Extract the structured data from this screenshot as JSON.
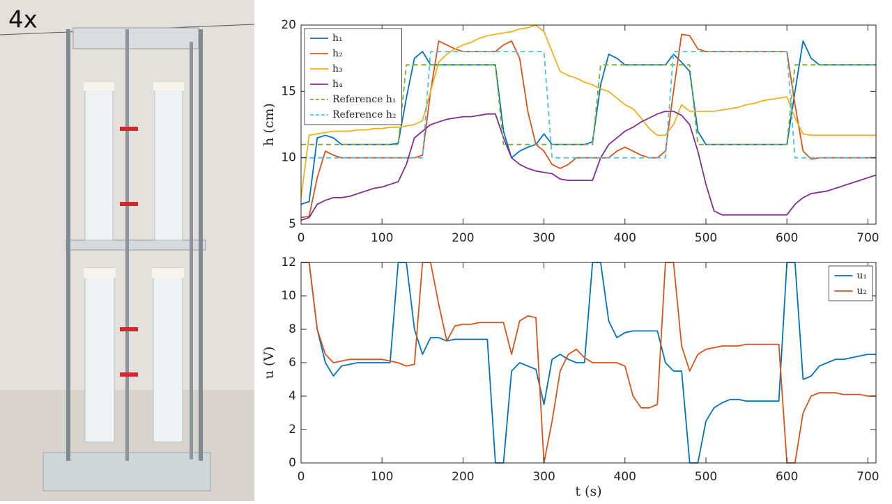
{
  "speed_label": "4x",
  "chart_data": [
    {
      "type": "line",
      "ylabel": "h (cm)",
      "legend": "north-west",
      "x": [
        0,
        10,
        20,
        30,
        40,
        50,
        60,
        70,
        80,
        90,
        100,
        110,
        120,
        130,
        140,
        150,
        160,
        170,
        180,
        190,
        200,
        210,
        220,
        230,
        240,
        250,
        260,
        270,
        280,
        290,
        300,
        310,
        320,
        330,
        340,
        350,
        360,
        370,
        380,
        390,
        400,
        410,
        420,
        430,
        440,
        450,
        460,
        470,
        480,
        490,
        500,
        510,
        520,
        530,
        540,
        550,
        560,
        570,
        580,
        590,
        600,
        610,
        620,
        630,
        640,
        650,
        660,
        670,
        680,
        690,
        700,
        710
      ],
      "xlim": [
        0,
        710
      ],
      "xticks": [
        0,
        100,
        200,
        300,
        400,
        500,
        600,
        700
      ],
      "ylim": [
        5,
        20
      ],
      "yticks": [
        5,
        10,
        15,
        20
      ],
      "series": [
        {
          "name": "h₁",
          "color": "#0072bd",
          "dash": false,
          "values": [
            6.5,
            6.7,
            11.5,
            11.7,
            11.5,
            11,
            11,
            11,
            11,
            11,
            11,
            11,
            11.1,
            14.5,
            17.5,
            18,
            17,
            17,
            17,
            17,
            17,
            17,
            17,
            17,
            17,
            12,
            10,
            10.5,
            10.8,
            11,
            11.8,
            11,
            11,
            11,
            11,
            11,
            11.2,
            15.5,
            17.8,
            17.5,
            17,
            17,
            17,
            17,
            17,
            17,
            17.8,
            17.2,
            16.5,
            12,
            11,
            11,
            11,
            11,
            11,
            11,
            11,
            11,
            11,
            11,
            11,
            15,
            18.8,
            17.5,
            17,
            17,
            17,
            17,
            17,
            17,
            17,
            17
          ]
        },
        {
          "name": "h₂",
          "color": "#d95319",
          "dash": false,
          "values": [
            5.5,
            5.6,
            8.5,
            10.5,
            10.2,
            10,
            10,
            10,
            10,
            10,
            10,
            10,
            10,
            10,
            10,
            10.2,
            15,
            18.8,
            18.5,
            18.2,
            18,
            18,
            18,
            18,
            18,
            18.5,
            18.8,
            17.5,
            13.5,
            11,
            10.5,
            9.5,
            9.2,
            9.5,
            10,
            10,
            10,
            10,
            10,
            10.5,
            10.8,
            10.5,
            10.2,
            10,
            10,
            10.5,
            15,
            19.3,
            19.2,
            18.2,
            18,
            18,
            18,
            18,
            18,
            18,
            18,
            18,
            18,
            18,
            18,
            14,
            10.5,
            9.9,
            10,
            10,
            10,
            10,
            10,
            10,
            10,
            10
          ]
        },
        {
          "name": "h₃",
          "color": "#edb120",
          "dash": false,
          "values": [
            7,
            11.7,
            11.8,
            11.9,
            12,
            12,
            12,
            12.1,
            12.1,
            12.2,
            12.2,
            12.3,
            12.3,
            12.4,
            12.5,
            12.8,
            15,
            17.2,
            17.8,
            18.2,
            18.5,
            18.7,
            19,
            19.2,
            19.3,
            19.4,
            19.5,
            19.7,
            19.8,
            20,
            19.5,
            18,
            16.5,
            16.2,
            16,
            15.7,
            15.5,
            15.2,
            15,
            14.5,
            14,
            13.7,
            13,
            12.2,
            11.7,
            11.7,
            12.5,
            14,
            13.5,
            13.5,
            13.5,
            13.5,
            13.6,
            13.7,
            13.8,
            14,
            14.1,
            14.3,
            14.4,
            14.5,
            14.6,
            13,
            11.8,
            11.7,
            11.7,
            11.7,
            11.7,
            11.7,
            11.7,
            11.7,
            11.7,
            11.7
          ]
        },
        {
          "name": "h₄",
          "color": "#7e2f8e",
          "dash": false,
          "values": [
            5.3,
            5.5,
            6.5,
            6.8,
            7,
            7,
            7.1,
            7.3,
            7.5,
            7.7,
            7.8,
            8,
            8.2,
            9.5,
            11.5,
            12,
            12.5,
            12.7,
            12.9,
            13,
            13.1,
            13.1,
            13.2,
            13.3,
            13.3,
            11.5,
            10,
            9.5,
            9.2,
            9,
            8.9,
            8.8,
            8.4,
            8.3,
            8.3,
            8.3,
            8.3,
            10,
            11,
            11.5,
            12,
            12.3,
            12.7,
            13,
            13.3,
            13.5,
            13.5,
            13.2,
            12.5,
            10.5,
            8,
            6,
            5.7,
            5.7,
            5.7,
            5.7,
            5.7,
            5.7,
            5.7,
            5.7,
            5.7,
            6.5,
            7,
            7.3,
            7.4,
            7.5,
            7.7,
            7.9,
            8.1,
            8.3,
            8.5,
            8.7
          ]
        },
        {
          "name": "Reference h₁",
          "color": "#77ac30",
          "dash": true,
          "values": [
            11,
            11,
            11,
            11,
            11,
            11,
            11,
            11,
            11,
            11,
            11,
            11,
            11,
            17,
            17,
            17,
            17,
            17,
            17,
            17,
            17,
            17,
            17,
            17,
            17,
            11,
            11,
            11,
            11,
            11,
            11,
            11,
            11,
            11,
            11,
            11,
            11,
            17,
            17,
            17,
            17,
            17,
            17,
            17,
            17,
            17,
            17,
            17,
            17,
            11,
            11,
            11,
            11,
            11,
            11,
            11,
            11,
            11,
            11,
            11,
            11,
            17,
            17,
            17,
            17,
            17,
            17,
            17,
            17,
            17,
            17,
            17
          ]
        },
        {
          "name": "Reference h₂",
          "color": "#4dbeee",
          "dash": true,
          "values": [
            10,
            10,
            10,
            10,
            10,
            10,
            10,
            10,
            10,
            10,
            10,
            10,
            10,
            10,
            10,
            10,
            18,
            18,
            18,
            18,
            18,
            18,
            18,
            18,
            18,
            18,
            18,
            18,
            18,
            18,
            18,
            10,
            10,
            10,
            10,
            10,
            10,
            10,
            10,
            10,
            10,
            10,
            10,
            10,
            10,
            10,
            18,
            18,
            18,
            18,
            18,
            18,
            18,
            18,
            18,
            18,
            18,
            18,
            18,
            18,
            18,
            10,
            10,
            10,
            10,
            10,
            10,
            10,
            10,
            10,
            10,
            10
          ]
        }
      ]
    },
    {
      "type": "line",
      "ylabel": "u (V)",
      "xlabel": "t (s)",
      "legend": "north-east",
      "x": [
        0,
        10,
        20,
        30,
        40,
        50,
        60,
        70,
        80,
        90,
        100,
        110,
        120,
        130,
        140,
        150,
        160,
        170,
        180,
        190,
        200,
        210,
        220,
        230,
        240,
        250,
        260,
        270,
        280,
        290,
        300,
        310,
        320,
        330,
        340,
        350,
        360,
        370,
        380,
        390,
        400,
        410,
        420,
        430,
        440,
        450,
        460,
        470,
        480,
        490,
        500,
        510,
        520,
        530,
        540,
        550,
        560,
        570,
        580,
        590,
        600,
        610,
        620,
        630,
        640,
        650,
        660,
        670,
        680,
        690,
        700,
        710
      ],
      "xlim": [
        0,
        710
      ],
      "xticks": [
        0,
        100,
        200,
        300,
        400,
        500,
        600,
        700
      ],
      "ylim": [
        0,
        12
      ],
      "yticks": [
        0,
        2,
        4,
        6,
        8,
        10,
        12
      ],
      "series": [
        {
          "name": "u₁",
          "color": "#0072bd",
          "dash": false,
          "values": [
            12,
            12,
            8,
            6,
            5.2,
            5.8,
            5.9,
            6,
            6,
            6,
            6,
            6,
            12,
            12,
            8,
            6.5,
            7.5,
            7.5,
            7.3,
            7.4,
            7.4,
            7.4,
            7.4,
            7.4,
            0,
            0,
            5.5,
            6,
            5.8,
            5.6,
            3.5,
            6.2,
            6.5,
            6.2,
            6,
            6,
            12,
            12,
            8.5,
            7.5,
            7.8,
            7.9,
            7.9,
            7.9,
            7.9,
            6,
            5.5,
            5.5,
            0,
            0,
            2.5,
            3.3,
            3.6,
            3.8,
            3.8,
            3.7,
            3.7,
            3.7,
            3.7,
            3.7,
            12,
            12,
            5,
            5.2,
            5.8,
            6,
            6.2,
            6.2,
            6.3,
            6.4,
            6.5,
            6.5
          ]
        },
        {
          "name": "u₂",
          "color": "#d95319",
          "dash": false,
          "values": [
            12,
            12,
            8,
            6.5,
            6,
            6.1,
            6.2,
            6.2,
            6.2,
            6.2,
            6.2,
            6.1,
            6,
            5.8,
            5.9,
            12,
            12,
            9.5,
            7.3,
            8.2,
            8.3,
            8.3,
            8.4,
            8.4,
            8.4,
            8.4,
            6.5,
            8.5,
            8.8,
            8.7,
            0,
            2.5,
            5.5,
            6.5,
            6.8,
            6.3,
            6,
            6,
            6,
            6,
            5.8,
            4,
            3.3,
            3.3,
            3.5,
            12,
            12,
            7,
            5.5,
            6.5,
            6.8,
            6.9,
            7,
            7,
            7,
            7.1,
            7.1,
            7.1,
            7.1,
            7.1,
            0,
            0,
            3,
            4,
            4.2,
            4.2,
            4.2,
            4.1,
            4.1,
            4.1,
            4,
            4
          ]
        }
      ]
    }
  ]
}
